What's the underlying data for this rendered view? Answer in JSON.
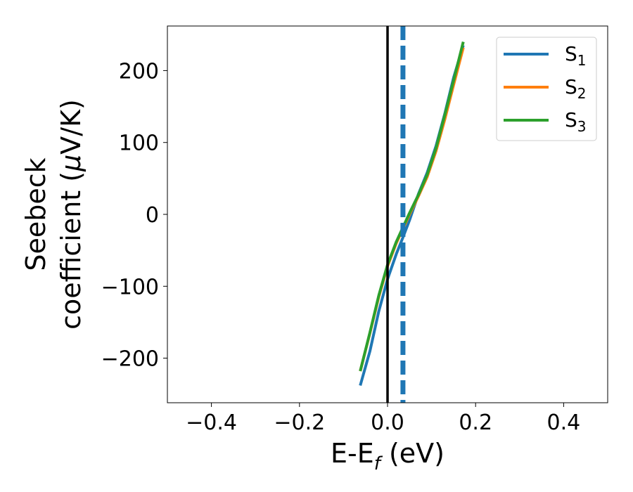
{
  "chart_data": {
    "type": "line",
    "xlabel": "E-E",
    "xlabel_sub": "f",
    "xlabel_unit": " (eV)",
    "ylabel_line1": "Seebeck",
    "ylabel_line2": "coefficient  (",
    "ylabel_mu": "μ",
    "ylabel_unit": "V/K)",
    "xlim": [
      -0.5,
      0.5
    ],
    "ylim": [
      -262,
      262
    ],
    "xticks": [
      -0.4,
      -0.2,
      0.0,
      0.2,
      0.4
    ],
    "xtick_labels": [
      "−0.4",
      "−0.2",
      "0.0",
      "0.2",
      "0.4"
    ],
    "yticks": [
      -200,
      -100,
      0,
      100,
      200
    ],
    "ytick_labels": [
      "−200",
      "−100",
      "0",
      "100",
      "200"
    ],
    "grid": false,
    "legend_position": "top-right",
    "vlines": [
      {
        "x": 0.0,
        "color": "#000000",
        "style": "solid"
      },
      {
        "x": 0.035,
        "color": "#1f77b4",
        "style": "dashed"
      }
    ],
    "series": [
      {
        "name": "S",
        "sub": "1",
        "color": "#1f77b4",
        "x": [
          -0.062,
          -0.04,
          -0.02,
          0.0,
          0.02,
          0.035,
          0.05,
          0.07,
          0.09,
          0.11,
          0.13,
          0.15,
          0.172
        ],
        "y": [
          -238,
          -190,
          -135,
          -90,
          -55,
          -32,
          -8,
          28,
          58,
          95,
          140,
          190,
          235
        ]
      },
      {
        "name": "S",
        "sub": "2",
        "color": "#ff7f0e",
        "x": [
          -0.062,
          -0.04,
          -0.02,
          0.0,
          0.02,
          0.035,
          0.05,
          0.07,
          0.09,
          0.11,
          0.13,
          0.15,
          0.172
        ],
        "y": [
          -218,
          -165,
          -115,
          -72,
          -40,
          -20,
          0,
          25,
          52,
          88,
          132,
          180,
          232
        ]
      },
      {
        "name": "S",
        "sub": "3",
        "color": "#2ca02c",
        "x": [
          -0.062,
          -0.04,
          -0.02,
          0.0,
          0.02,
          0.035,
          0.05,
          0.07,
          0.09,
          0.11,
          0.13,
          0.15,
          0.172
        ],
        "y": [
          -218,
          -164,
          -113,
          -70,
          -38,
          -18,
          2,
          27,
          55,
          92,
          138,
          186,
          240
        ]
      }
    ]
  }
}
